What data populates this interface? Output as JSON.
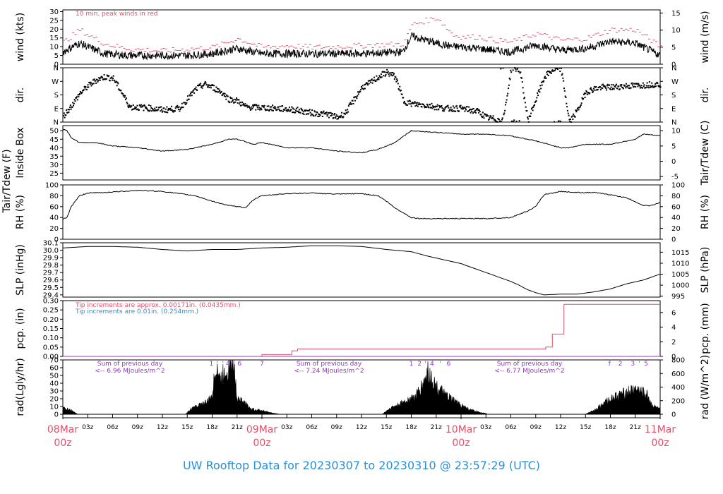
{
  "title": "UW Rooftop Data for 20230307  to  20230310 @ 23:57:29  (UTC)",
  "colors": {
    "peak": "#e0506a",
    "line": "#000000",
    "note_blue": "#2a8fd6",
    "note_purple": "#9933cc",
    "date": "#e0506a",
    "title": "#2a8fd6"
  },
  "x_axis": {
    "start": "08Mar 00z",
    "hours_span": 72,
    "hour_ticks": [
      "03z",
      "06z",
      "09z",
      "12z",
      "15z",
      "18z",
      "21z",
      "00z",
      "03z",
      "06z",
      "09z",
      "12z",
      "15z",
      "18z",
      "21z",
      "00z",
      "03z",
      "06z",
      "09z",
      "12z",
      "15z",
      "18z",
      "21z"
    ],
    "hour_tick_positions": [
      3,
      6,
      9,
      12,
      15,
      18,
      21,
      24,
      27,
      30,
      33,
      36,
      39,
      42,
      45,
      48,
      51,
      54,
      57,
      60,
      63,
      66,
      69
    ],
    "date_labels": [
      {
        "day": "08Mar",
        "z": "00z",
        "hour": 0
      },
      {
        "day": "09Mar",
        "z": "00z",
        "hour": 24
      },
      {
        "day": "10Mar",
        "z": "00z",
        "hour": 48
      },
      {
        "day": "11Mar",
        "z": "00z",
        "hour": 72
      }
    ]
  },
  "chart_data": [
    {
      "type": "line",
      "id": "wind",
      "ylabel_left": "wind (kts)",
      "ylabel_right": "wind (m/s)",
      "ylim": [
        0,
        31
      ],
      "yticks_left": [
        0,
        5,
        10,
        15,
        20,
        25,
        30
      ],
      "yticks_right": [
        0,
        5,
        10,
        15
      ],
      "annotation": "10 min. peak winds in red",
      "series": [
        {
          "name": "10 min. peak winds",
          "x": [
            0,
            2,
            3,
            5,
            8,
            12,
            15,
            18,
            21,
            24,
            27,
            30,
            36,
            41,
            42,
            45,
            47,
            48,
            50,
            52,
            54,
            57,
            60,
            63,
            66,
            69,
            72
          ],
          "values": [
            12,
            19,
            16,
            11,
            8,
            7,
            8,
            9,
            14,
            9,
            10,
            9,
            10,
            11,
            22,
            26,
            16,
            15,
            15,
            13,
            12,
            17,
            13,
            14,
            19,
            19,
            9
          ]
        },
        {
          "name": "wind",
          "x": [
            0,
            2,
            3,
            5,
            8,
            12,
            15,
            18,
            21,
            24,
            27,
            30,
            36,
            41,
            42,
            45,
            47,
            48,
            50,
            52,
            54,
            57,
            60,
            63,
            66,
            69,
            72
          ],
          "values": [
            7,
            12,
            10,
            6,
            5,
            5,
            5,
            6,
            9,
            6,
            6,
            6,
            6,
            7,
            16,
            12,
            10,
            10,
            9,
            8,
            7,
            11,
            8,
            9,
            13,
            12,
            5
          ]
        }
      ]
    },
    {
      "type": "scatter",
      "id": "dir",
      "ylabel_left": "dir.",
      "ylabel_right": "dir.",
      "yticks_left": [
        "N",
        "E",
        "S",
        "W",
        "N"
      ],
      "yticks_right": [
        "N",
        "E",
        "S",
        "W",
        "N"
      ],
      "ylim": [
        0,
        360
      ],
      "series": [
        {
          "name": "direction",
          "x": [
            0,
            1,
            2,
            3,
            4,
            5,
            6,
            7,
            8,
            10,
            12,
            14,
            16,
            17,
            18,
            19,
            20,
            21,
            22,
            24,
            26,
            28,
            30,
            32,
            33,
            34,
            36,
            37,
            38,
            39,
            40,
            41,
            42,
            44,
            46,
            48,
            49,
            50,
            51,
            52,
            53,
            54,
            55,
            56,
            58,
            59,
            60,
            61,
            62,
            63,
            64,
            65,
            66,
            67,
            68,
            69,
            70,
            71,
            72
          ],
          "values": [
            40,
            110,
            190,
            240,
            280,
            300,
            290,
            200,
            100,
            95,
            80,
            90,
            220,
            250,
            230,
            200,
            150,
            140,
            100,
            95,
            90,
            80,
            60,
            50,
            30,
            60,
            230,
            260,
            300,
            330,
            300,
            140,
            120,
            110,
            90,
            90,
            80,
            70,
            30,
            20,
            10,
            360,
            350,
            10,
            300,
            345,
            350,
            0,
            80,
            200,
            220,
            230,
            230,
            235,
            240,
            240,
            245,
            250,
            250
          ]
        }
      ]
    },
    {
      "type": "line",
      "id": "temp",
      "ylabel_left": "Tair/Tdew (F)",
      "ylabel_left2": "Inside Box",
      "ylabel_right": "Tair/Tdew (C)",
      "ylim": [
        21,
        53
      ],
      "yticks_left": [
        25,
        30,
        35,
        40,
        45,
        50
      ],
      "yticks_right": [
        -5,
        0,
        5,
        10
      ],
      "series": [
        {
          "name": "Tair",
          "x": [
            0,
            0.5,
            1,
            2,
            4,
            6,
            9,
            12,
            15,
            18,
            20,
            21,
            23,
            24,
            27,
            30,
            33,
            36,
            38,
            40,
            42,
            45,
            48,
            51,
            54,
            57,
            60,
            61,
            63,
            66,
            69,
            70,
            72
          ],
          "values": [
            51,
            50,
            46,
            43,
            43,
            41,
            40,
            38,
            39,
            42,
            45,
            45,
            42,
            43,
            40,
            40,
            38,
            37,
            39,
            43,
            50,
            49,
            48,
            48,
            47,
            44,
            40,
            40,
            42,
            42,
            45,
            48,
            47
          ]
        }
      ]
    },
    {
      "type": "line",
      "id": "rh",
      "ylabel_left": "RH (%)",
      "ylabel_right": "RH (%)",
      "ylim": [
        0,
        100
      ],
      "yticks_left": [
        0,
        20,
        40,
        60,
        80,
        100
      ],
      "yticks_right": [
        0,
        20,
        40,
        60,
        80,
        100
      ],
      "series": [
        {
          "name": "RH",
          "x": [
            0,
            0.5,
            1,
            2,
            3,
            5,
            9,
            12,
            16,
            18,
            20,
            22,
            23,
            24,
            27,
            30,
            33,
            36,
            38,
            39,
            40,
            42,
            43,
            45,
            48,
            51,
            54,
            56,
            57,
            58,
            60,
            62,
            64,
            66,
            68,
            70,
            71,
            72
          ],
          "values": [
            37,
            40,
            60,
            80,
            85,
            86,
            90,
            88,
            80,
            70,
            62,
            58,
            73,
            80,
            84,
            85,
            83,
            84,
            80,
            70,
            58,
            40,
            38,
            38,
            38,
            38,
            40,
            52,
            60,
            82,
            88,
            86,
            86,
            82,
            76,
            62,
            62,
            68
          ]
        }
      ]
    },
    {
      "type": "line",
      "id": "slp",
      "ylabel_left": "SLP (inHg)",
      "ylabel_right": "SLP (hPa)",
      "ylim": [
        29.37,
        30.1
      ],
      "yticks_left": [
        29.4,
        29.5,
        29.6,
        29.7,
        29.8,
        29.9,
        30.0,
        30.1
      ],
      "yticks_right": [
        995,
        1000,
        1005,
        1010,
        1015
      ],
      "series": [
        {
          "name": "SLP",
          "x": [
            0,
            3,
            6,
            9,
            12,
            15,
            18,
            21,
            24,
            27,
            30,
            33,
            36,
            39,
            42,
            44,
            46,
            48,
            50,
            52,
            54,
            55,
            56,
            57,
            58,
            60,
            62,
            64,
            66,
            68,
            70,
            72
          ],
          "values": [
            30.03,
            30.05,
            30.05,
            30.04,
            30.01,
            29.99,
            30.01,
            30.01,
            30.03,
            30.04,
            30.06,
            30.06,
            30.05,
            30.01,
            29.98,
            29.92,
            29.87,
            29.82,
            29.74,
            29.66,
            29.58,
            29.53,
            29.47,
            29.43,
            29.4,
            29.41,
            29.41,
            29.44,
            29.48,
            29.55,
            29.6,
            29.68
          ]
        }
      ]
    },
    {
      "type": "line",
      "id": "pcp",
      "ylabel_left": "pcp. (in)",
      "ylabel_right": "pcp. (mm)",
      "ylim": [
        0,
        0.3
      ],
      "yticks_left": [
        0.0,
        0.05,
        0.1,
        0.15,
        0.2,
        0.25,
        0.3
      ],
      "yticks_right": [
        0,
        2,
        4,
        6
      ],
      "annotations": [
        "Tip increments are approx. 0.00171in. (0.0435mm.)",
        "Tip increments are 0.01in. (0.254mm.)"
      ],
      "series": [
        {
          "name": "precip (approx)",
          "x": [
            0,
            20.6,
            23.8,
            24.0,
            26.7,
            27.6,
            28.3,
            57.3,
            58.2,
            59.0,
            60.4,
            72
          ],
          "values": [
            0,
            0,
            0,
            0.01,
            0.01,
            0.03,
            0.04,
            0.04,
            0.05,
            0.12,
            0.28,
            0.28
          ]
        },
        {
          "name": "precip (0.01in)",
          "x": [
            0,
            24,
            72
          ],
          "values": [
            0,
            0,
            0
          ]
        }
      ]
    },
    {
      "type": "area",
      "id": "rad",
      "ylabel_left": "rad(Lgly/hr)",
      "ylabel_right": "rad (W/m^2)",
      "ylim": [
        0,
        70
      ],
      "yticks_left": [
        0,
        10,
        20,
        30,
        40,
        50,
        60,
        70
      ],
      "yticks_right": [
        0,
        200,
        400,
        600,
        800
      ],
      "annotations": [
        {
          "line1": "Sum of previous day",
          "line2": "<-- 6.96 MJoules/m^2"
        },
        {
          "line1": "Sum of previous day",
          "line2": "<-- 7.24 MJoules/m^2"
        },
        {
          "line1": "Sum of previous day",
          "line2": "<-- 6.77 MJoules/m^2"
        }
      ],
      "marks": [
        {
          "hour": 17.9,
          "text": "1"
        },
        {
          "hour": 18.6,
          "text": "'"
        },
        {
          "hour": 19.3,
          "text": "'"
        },
        {
          "hour": 19.9,
          "text": "4"
        },
        {
          "hour": 20.6,
          "text": "'"
        },
        {
          "hour": 21.3,
          "text": "6"
        },
        {
          "hour": 24.0,
          "text": "7"
        },
        {
          "hour": 42.0,
          "text": "1"
        },
        {
          "hour": 43.0,
          "text": "2"
        },
        {
          "hour": 43.7,
          "text": "'"
        },
        {
          "hour": 44.5,
          "text": "4"
        },
        {
          "hour": 45.5,
          "text": "'"
        },
        {
          "hour": 46.5,
          "text": "6"
        },
        {
          "hour": 65.9,
          "text": "f"
        },
        {
          "hour": 67.2,
          "text": "2"
        },
        {
          "hour": 68.7,
          "text": "3"
        },
        {
          "hour": 69.5,
          "text": "'"
        },
        {
          "hour": 70.3,
          "text": "5"
        }
      ],
      "series": [
        {
          "name": "radiation",
          "x": [
            0,
            1,
            1.8,
            14.8,
            15.5,
            16.5,
            17.5,
            18,
            18.5,
            19,
            19.5,
            20,
            20.5,
            21,
            21.5,
            22,
            22.5,
            23,
            24,
            25,
            26.2,
            38.5,
            39.5,
            40.5,
            41.5,
            42.5,
            43.5,
            44,
            44.5,
            45,
            46,
            47,
            48,
            49,
            50,
            51,
            51.2,
            63,
            64,
            65,
            66,
            67,
            68,
            69,
            69.5,
            70,
            70.5,
            71,
            72
          ],
          "values": [
            8,
            5,
            0,
            0,
            7,
            12,
            16,
            24,
            65,
            42,
            55,
            60,
            70,
            22,
            18,
            14,
            8,
            6,
            5,
            2,
            0,
            0,
            8,
            12,
            18,
            22,
            40,
            55,
            44,
            35,
            25,
            18,
            12,
            6,
            3,
            1,
            0,
            0,
            5,
            12,
            20,
            24,
            28,
            32,
            30,
            27,
            24,
            12,
            6
          ]
        }
      ]
    }
  ]
}
